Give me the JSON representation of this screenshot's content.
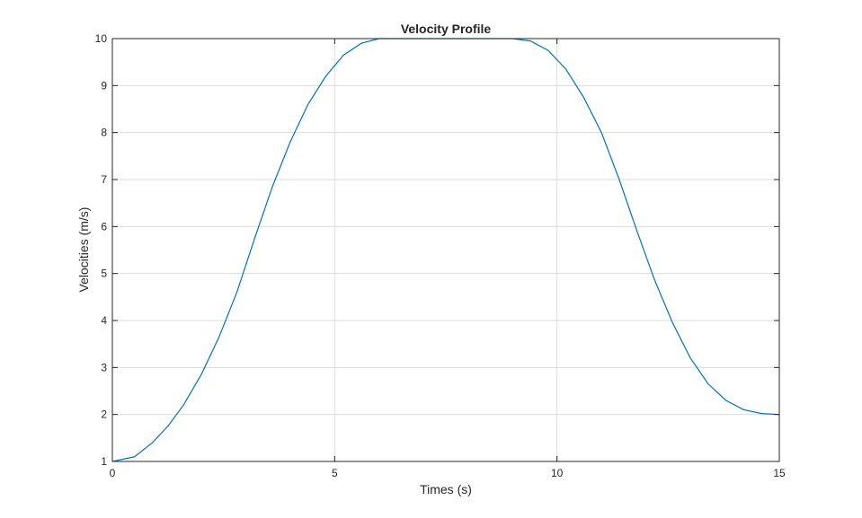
{
  "chart_data": {
    "type": "line",
    "title": "Velocity Profile",
    "xlabel": "Times (s)",
    "ylabel": "Velocities (m/s)",
    "xlim": [
      0,
      15
    ],
    "ylim": [
      1,
      10
    ],
    "xticks": [
      0,
      5,
      10,
      15
    ],
    "yticks": [
      1,
      2,
      3,
      4,
      5,
      6,
      7,
      8,
      9,
      10
    ],
    "grid": true,
    "line_color": "#0072BD",
    "series": [
      {
        "x": [
          0,
          0.5,
          0.9,
          1.25,
          1.6,
          2.0,
          2.4,
          2.8,
          3.2,
          3.6,
          4.0,
          4.4,
          4.8,
          5.2,
          5.6,
          6.0,
          7.0,
          8.0,
          9.0,
          9.4,
          9.8,
          10.2,
          10.6,
          11.0,
          11.4,
          11.8,
          12.2,
          12.6,
          13.0,
          13.4,
          13.8,
          14.2,
          14.6,
          15.0
        ],
        "y": [
          1.0,
          1.1,
          1.4,
          1.75,
          2.2,
          2.85,
          3.65,
          4.6,
          5.75,
          6.85,
          7.8,
          8.6,
          9.2,
          9.65,
          9.9,
          10.0,
          10.0,
          10.0,
          10.0,
          9.95,
          9.75,
          9.35,
          8.75,
          8.0,
          7.0,
          5.9,
          4.85,
          3.95,
          3.2,
          2.65,
          2.3,
          2.1,
          2.02,
          2.0
        ]
      }
    ]
  }
}
